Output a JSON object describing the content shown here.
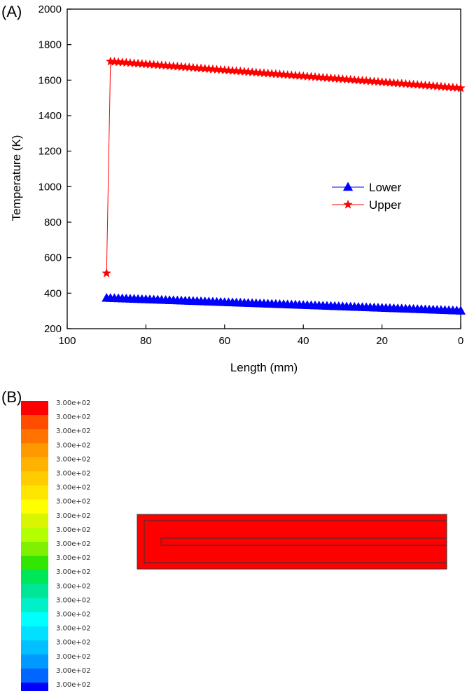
{
  "panel_a_label": "(A)",
  "panel_b_label": "(B)",
  "chart_data": {
    "type": "line",
    "title": "",
    "xlabel": "Length (mm)",
    "ylabel": "Temperature (K)",
    "xlim": [
      100,
      0
    ],
    "ylim": [
      200,
      2000
    ],
    "x_reversed": true,
    "xticks": [
      100,
      80,
      60,
      40,
      20,
      0
    ],
    "yticks": [
      200,
      400,
      600,
      800,
      1000,
      1200,
      1400,
      1600,
      1800,
      2000
    ],
    "legend_position": "right-middle",
    "series": [
      {
        "name": "Lower",
        "color": "#0000ff",
        "marker": "triangle",
        "points": {
          "x_start": 90,
          "x_end": 0,
          "count": 91,
          "y_start": 372,
          "y_end": 300
        }
      },
      {
        "name": "Upper",
        "color": "#ff0000",
        "marker": "star",
        "first_point": {
          "x": 90,
          "y": 512
        },
        "points": {
          "x_start": 89,
          "x_end": 0,
          "count": 90,
          "y_start": 1705,
          "y_end": 1555
        }
      }
    ]
  },
  "colorbar": {
    "colors": [
      "#ff0000",
      "#ff4d00",
      "#ff7300",
      "#ff9900",
      "#ffb300",
      "#ffcc00",
      "#ffe600",
      "#ffff00",
      "#d9f500",
      "#b3ff00",
      "#80f000",
      "#33e600",
      "#00e659",
      "#00e699",
      "#00f0c8",
      "#00ffff",
      "#00e0ff",
      "#00c0ff",
      "#0099ff",
      "#0066ff",
      "#0000ff"
    ],
    "labels": [
      "3.00e+02",
      "3.00e+02",
      "3.00e+02",
      "3.00e+02",
      "3.00e+02",
      "3.00e+02",
      "3.00e+02",
      "3.00e+02",
      "3.00e+02",
      "3.00e+02",
      "3.00e+02",
      "3.00e+02",
      "3.00e+02",
      "3.00e+02",
      "3.00e+02",
      "3.00e+02",
      "3.00e+02",
      "3.00e+02",
      "3.00e+02",
      "3.00e+02",
      "3.00e+02"
    ]
  },
  "contour_domain_color": "#ff0000"
}
